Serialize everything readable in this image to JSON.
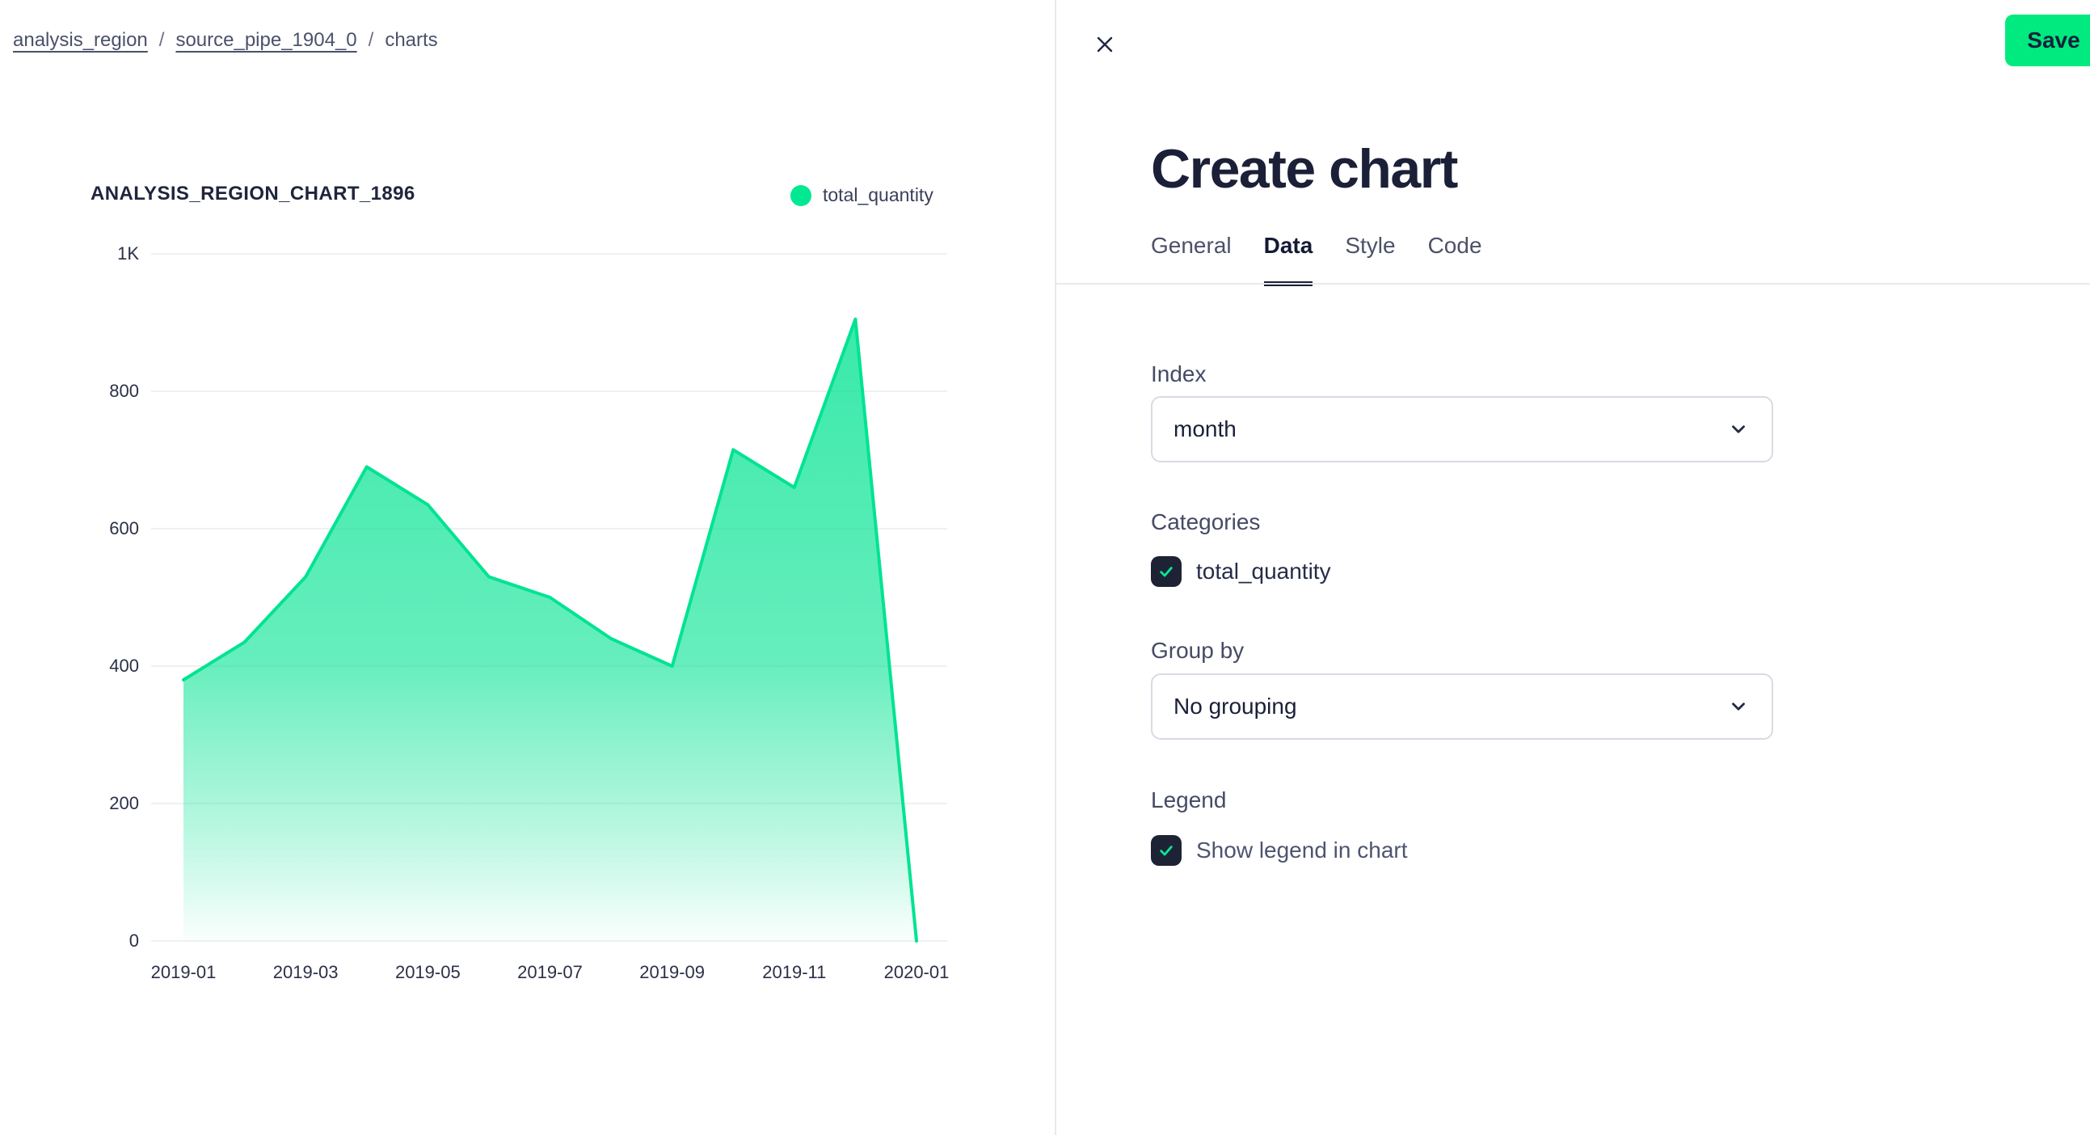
{
  "breadcrumb": {
    "separator": "/",
    "items": [
      {
        "label": "analysis_region",
        "link": true
      },
      {
        "label": "source_pipe_1904_0",
        "link": true
      },
      {
        "label": "charts",
        "link": false
      }
    ]
  },
  "chart_data": {
    "type": "area",
    "title": "ANALYSIS_REGION_CHART_1896",
    "x": [
      "2019-01",
      "2019-02",
      "2019-03",
      "2019-04",
      "2019-05",
      "2019-06",
      "2019-07",
      "2019-08",
      "2019-09",
      "2019-10",
      "2019-11",
      "2019-12",
      "2020-01"
    ],
    "series": [
      {
        "name": "total_quantity",
        "values": [
          380,
          435,
          530,
          690,
          635,
          530,
          500,
          440,
          400,
          715,
          660,
          905,
          0
        ]
      }
    ],
    "ylim": [
      0,
      1000
    ],
    "yticks": [
      {
        "value": 0,
        "label": "0"
      },
      {
        "value": 200,
        "label": "200"
      },
      {
        "value": 400,
        "label": "400"
      },
      {
        "value": 600,
        "label": "600"
      },
      {
        "value": 800,
        "label": "800"
      },
      {
        "value": 1000,
        "label": "1K"
      }
    ],
    "xticks": [
      {
        "index": 0,
        "label": "2019-01"
      },
      {
        "index": 2,
        "label": "2019-03"
      },
      {
        "index": 4,
        "label": "2019-05"
      },
      {
        "index": 6,
        "label": "2019-07"
      },
      {
        "index": 8,
        "label": "2019-09"
      },
      {
        "index": 10,
        "label": "2019-11"
      },
      {
        "index": 12,
        "label": "2020-01"
      }
    ],
    "grid": true,
    "legend_position": "top-right",
    "legend": [
      {
        "label": "total_quantity",
        "color": "#00e892"
      }
    ],
    "line_color": "#00e392",
    "fill_top": "rgba(0,227,146,0.78)",
    "fill_bottom": "rgba(0,227,146,0.02)",
    "gridline_color": "#eaebef"
  },
  "panel": {
    "title": "Create chart",
    "save_label": "Save",
    "tabs": [
      {
        "label": "General",
        "active": false
      },
      {
        "label": "Data",
        "active": true
      },
      {
        "label": "Style",
        "active": false
      },
      {
        "label": "Code",
        "active": false
      }
    ],
    "index_field": {
      "label": "Index",
      "value": "month"
    },
    "categories_field": {
      "label": "Categories",
      "options": [
        {
          "label": "total_quantity",
          "checked": true
        }
      ]
    },
    "group_by_field": {
      "label": "Group by",
      "value": "No grouping"
    },
    "legend_field": {
      "label": "Legend",
      "checkbox_label": "Show legend in chart",
      "checked": true
    }
  },
  "colors": {
    "accent_green": "#00e392",
    "save_green": "#00ea7f",
    "checkbox_bg": "#1d2335",
    "check_mark": "#0ae594",
    "dark_text": "#1b2038",
    "gray_text": "#454b64"
  }
}
